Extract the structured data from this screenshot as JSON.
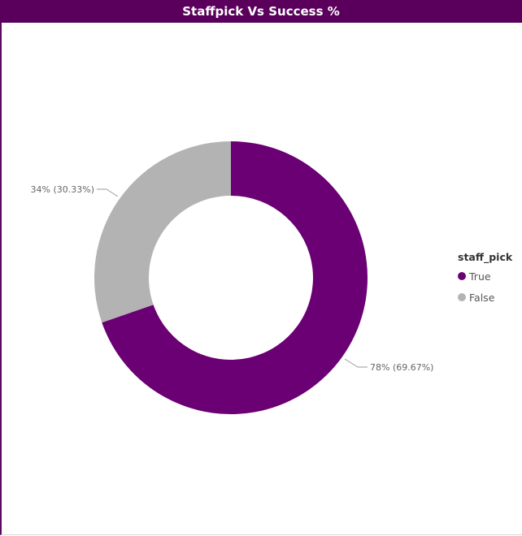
{
  "chart_data": {
    "type": "pie",
    "donut": true,
    "title": "Staffpick Vs Success %",
    "legend": {
      "title": "staff_pick",
      "placement": "right"
    },
    "slices": [
      {
        "label": "True",
        "value": 78,
        "percent": 69.67,
        "data_label": "78% (69.67%)",
        "color": "#6a0073"
      },
      {
        "label": "False",
        "value": 34,
        "percent": 30.33,
        "data_label": "34% (30.33%)",
        "color": "#b3b3b3"
      }
    ]
  },
  "colors": {
    "title_bar": "#5a005c",
    "title_text": "#ffffff",
    "label_text": "#666666"
  }
}
